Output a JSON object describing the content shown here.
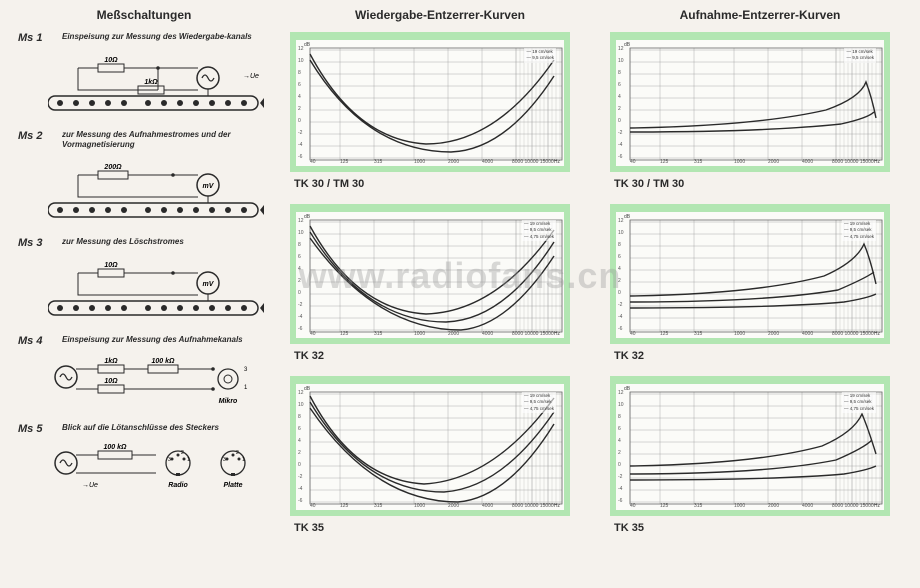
{
  "headings": {
    "left": "Meßschaltungen",
    "mid": "Wiedergabe-Entzerrer-Kurven",
    "right": "Aufnahme-Entzerrer-Kurven"
  },
  "ms": [
    {
      "label": "Ms 1",
      "desc": "Einspeisung zur Messung des Wiedergabe-kanals",
      "r1": "10Ω",
      "r2": "1kΩ",
      "sym": "≈",
      "arrowR": "→Ue"
    },
    {
      "label": "Ms 2",
      "desc": "zur Messung des Aufnahmestromes und der Vormagnetisierung",
      "r1": "200Ω",
      "meter": "mV"
    },
    {
      "label": "Ms 3",
      "desc": "zur Messung des Löschstromes",
      "r1": "10Ω",
      "meter": "mV"
    },
    {
      "label": "Ms 4",
      "desc": "Einspeisung zur Messung des Aufnahmekanals",
      "r1": "1kΩ",
      "r2": "100 kΩ",
      "r3": "10Ω",
      "mic": "Mikro"
    },
    {
      "label": "Ms 5",
      "desc": "Blick auf die Lötanschlüsse des Steckers",
      "r1": "100 kΩ",
      "p1": "Radio",
      "p2": "Platte"
    }
  ],
  "chart_style": {
    "bg": "#b2e6b2",
    "inner_bg": "#fbfbf8",
    "grid_color": "#999",
    "curve_color": "#2a2a2a",
    "y_ticks": [
      "12",
      "10",
      "8",
      "6",
      "4",
      "2",
      "0",
      "-2",
      "-4",
      "-6"
    ],
    "x_ticks": [
      "40",
      "125",
      "315",
      "1000",
      "2000",
      "4000",
      "8000 10000 15000"
    ],
    "y_unit": "dB",
    "x_unit": "Hz"
  },
  "mid_charts": [
    {
      "label": "TK 30 / TM 30",
      "legend": [
        "19 cm/sek",
        "9,5 cm/sek"
      ],
      "curves": [
        "M14 14 Q 60 100 130 104 Q 200 104 258 20",
        "M14 20 Q 70 112 155 112 Q 210 110 258 36"
      ],
      "marks": [
        "20 mV"
      ]
    },
    {
      "label": "TK 32",
      "legend": [
        "19 cm/sek",
        "9,5 cm/sek",
        "4,75 cm/sek"
      ],
      "curves": [
        "M14 14 Q 60 98 130 102 Q 200 100 258 18",
        "M14 20 Q 70 110 150 110 Q 208 108 258 30",
        "M14 26 Q 80 118 165 118 Q 212 114 258 44"
      ],
      "marks": [
        "20 mV",
        "20 mV"
      ]
    },
    {
      "label": "TK 35",
      "legend": [
        "19 cm/sek",
        "9,5 cm/sek",
        "4,75 cm/sek"
      ],
      "curves": [
        "M14 12 Q 58 96 128 100 Q 198 96 258 14",
        "M14 18 Q 68 108 148 108 Q 206 104 258 28",
        "M14 24 Q 78 118 162 118 Q 212 114 258 40"
      ],
      "marks": [
        "20 mV",
        "20 mV",
        "20 mV",
        "100 mV",
        "100 mV"
      ]
    }
  ],
  "right_charts": [
    {
      "label": "TK 30 / TM 30",
      "legend": [
        "19 cm/sek",
        "9,5 cm/sek"
      ],
      "curves": [
        "M14 88 Q 140 86 210 70 Q 244 58 250 42 Q 256 58 260 78",
        "M14 92 Q 150 92 225 84 Q 252 78 258 72"
      ],
      "marks": [
        "50 mV",
        "TK 30 A"
      ]
    },
    {
      "label": "TK 32",
      "legend": [
        "19 cm/sek",
        "9,5 cm/sek",
        "4,75 cm/sek"
      ],
      "curves": [
        "M14 84 Q 140 82 208 64 Q 240 50 248 32 Q 254 46 260 72",
        "M14 90 Q 150 90 222 78 Q 250 66 258 60",
        "M14 96 Q 160 96 228 90 Q 252 86 260 82"
      ],
      "marks": [
        "50 mV",
        "20 mV"
      ]
    },
    {
      "label": "TK 35",
      "legend": [
        "19 cm/sek",
        "9,5 cm/sek",
        "4,75 cm/sek"
      ],
      "curves": [
        "M14 82 Q 140 80 206 62 Q 238 48 246 30 Q 252 44 260 70",
        "M14 90 Q 150 90 220 76 Q 248 64 256 56",
        "M14 96 Q 160 96 228 90 Q 252 86 260 82"
      ],
      "marks": [
        "50 mV"
      ]
    }
  ],
  "watermark": "www.radiofans.cn"
}
